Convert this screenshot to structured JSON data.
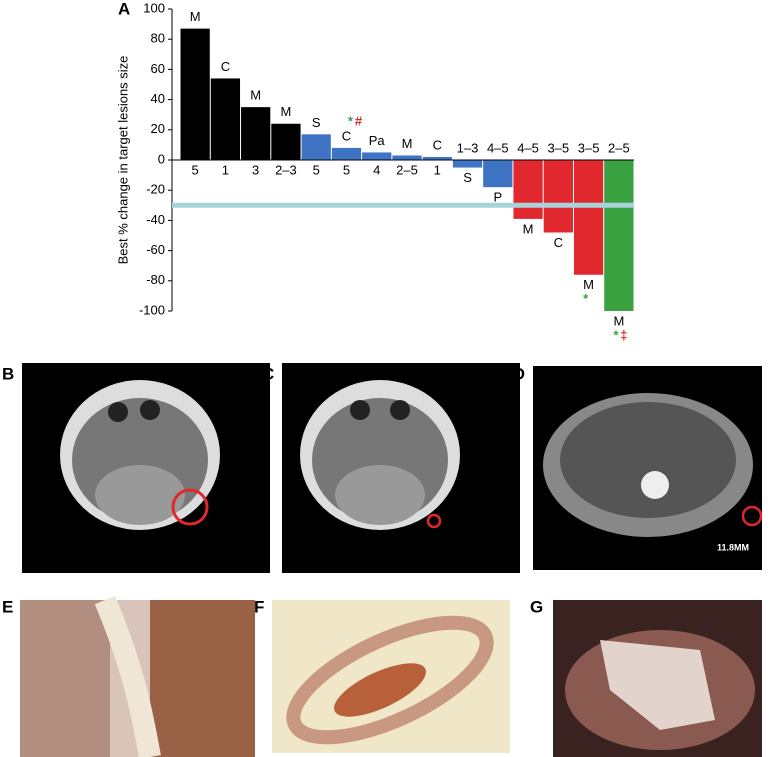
{
  "chart_data": {
    "type": "bar",
    "panel": "A",
    "y_label": "Best % change in target lesions size",
    "categories": [
      "5",
      "1",
      "3",
      "2–3",
      "5",
      "5",
      "4",
      "2–5",
      "1",
      "1–3",
      "4–5",
      "4–5",
      "3–5",
      "3–5",
      "2–5"
    ],
    "types": [
      "M",
      "C",
      "M",
      "M",
      "S",
      "C",
      "Pa",
      "M",
      "C",
      "S",
      "P",
      "M",
      "C",
      "M",
      "M"
    ],
    "values": [
      87,
      54,
      35,
      24,
      17,
      8,
      5,
      3,
      2,
      -5,
      -18,
      -39,
      -48,
      -76,
      -100
    ],
    "colors": [
      "#000000",
      "#000000",
      "#000000",
      "#000000",
      "#3f74c4",
      "#3f74c4",
      "#3f74c4",
      "#3f74c4",
      "#3f74c4",
      "#3f74c4",
      "#3f74c4",
      "#e0282e",
      "#e0282e",
      "#e0282e",
      "#3aa141"
    ],
    "markers": [
      {
        "index": 5,
        "text": "*",
        "color": "#3aa141"
      },
      {
        "index": 5,
        "text": "#",
        "color": "#e0282e"
      },
      {
        "index": 13,
        "text": "*",
        "color": "#3aa141"
      },
      {
        "index": 14,
        "text": "*",
        "color": "#3aa141"
      },
      {
        "index": 14,
        "text": "‡",
        "color": "#e0282e"
      }
    ],
    "reference_line": -30,
    "reference_color": "#a9d3dc",
    "ylim": [
      -100,
      100
    ],
    "yticks": [
      -100,
      -80,
      -60,
      -40,
      -20,
      0,
      20,
      40,
      60,
      80,
      100
    ]
  },
  "panels": [
    {
      "label": "B"
    },
    {
      "label": "C"
    },
    {
      "label": "D",
      "scale_text": "11.8MM"
    },
    {
      "label": "E"
    },
    {
      "label": "F"
    },
    {
      "label": "G"
    }
  ]
}
